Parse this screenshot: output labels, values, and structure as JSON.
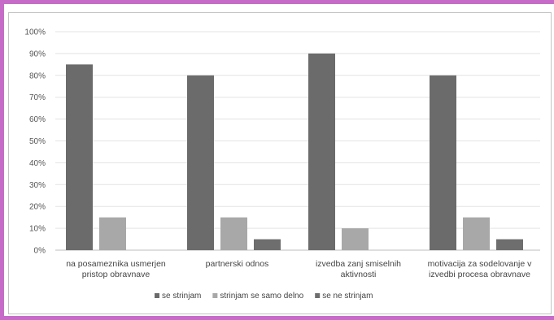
{
  "chart_data": {
    "type": "bar",
    "title": "",
    "xlabel": "",
    "ylabel": "",
    "ylim": [
      0,
      100
    ],
    "y_ticks": [
      "0%",
      "10%",
      "20%",
      "30%",
      "40%",
      "50%",
      "60%",
      "70%",
      "80%",
      "90%",
      "100%"
    ],
    "grid": true,
    "legend_position": "bottom",
    "categories": [
      [
        "na posameznika usmerjen",
        "pristop obravnave"
      ],
      [
        "partnerski odnos"
      ],
      [
        "izvedba zanj smiselnih",
        "aktivnosti"
      ],
      [
        "motivacija za sodelovanje v",
        "izvedbi procesa obravnave"
      ]
    ],
    "series": [
      {
        "name": "se strinjam",
        "color": "#6b6b6b",
        "values": [
          85,
          80,
          90,
          80
        ]
      },
      {
        "name": "strinjam se samo delno",
        "color": "#a8a8a8",
        "values": [
          15,
          15,
          10,
          15
        ]
      },
      {
        "name": "se ne strinjam",
        "color": "#6e6e6e",
        "values": [
          0,
          5,
          0,
          5
        ]
      }
    ]
  }
}
